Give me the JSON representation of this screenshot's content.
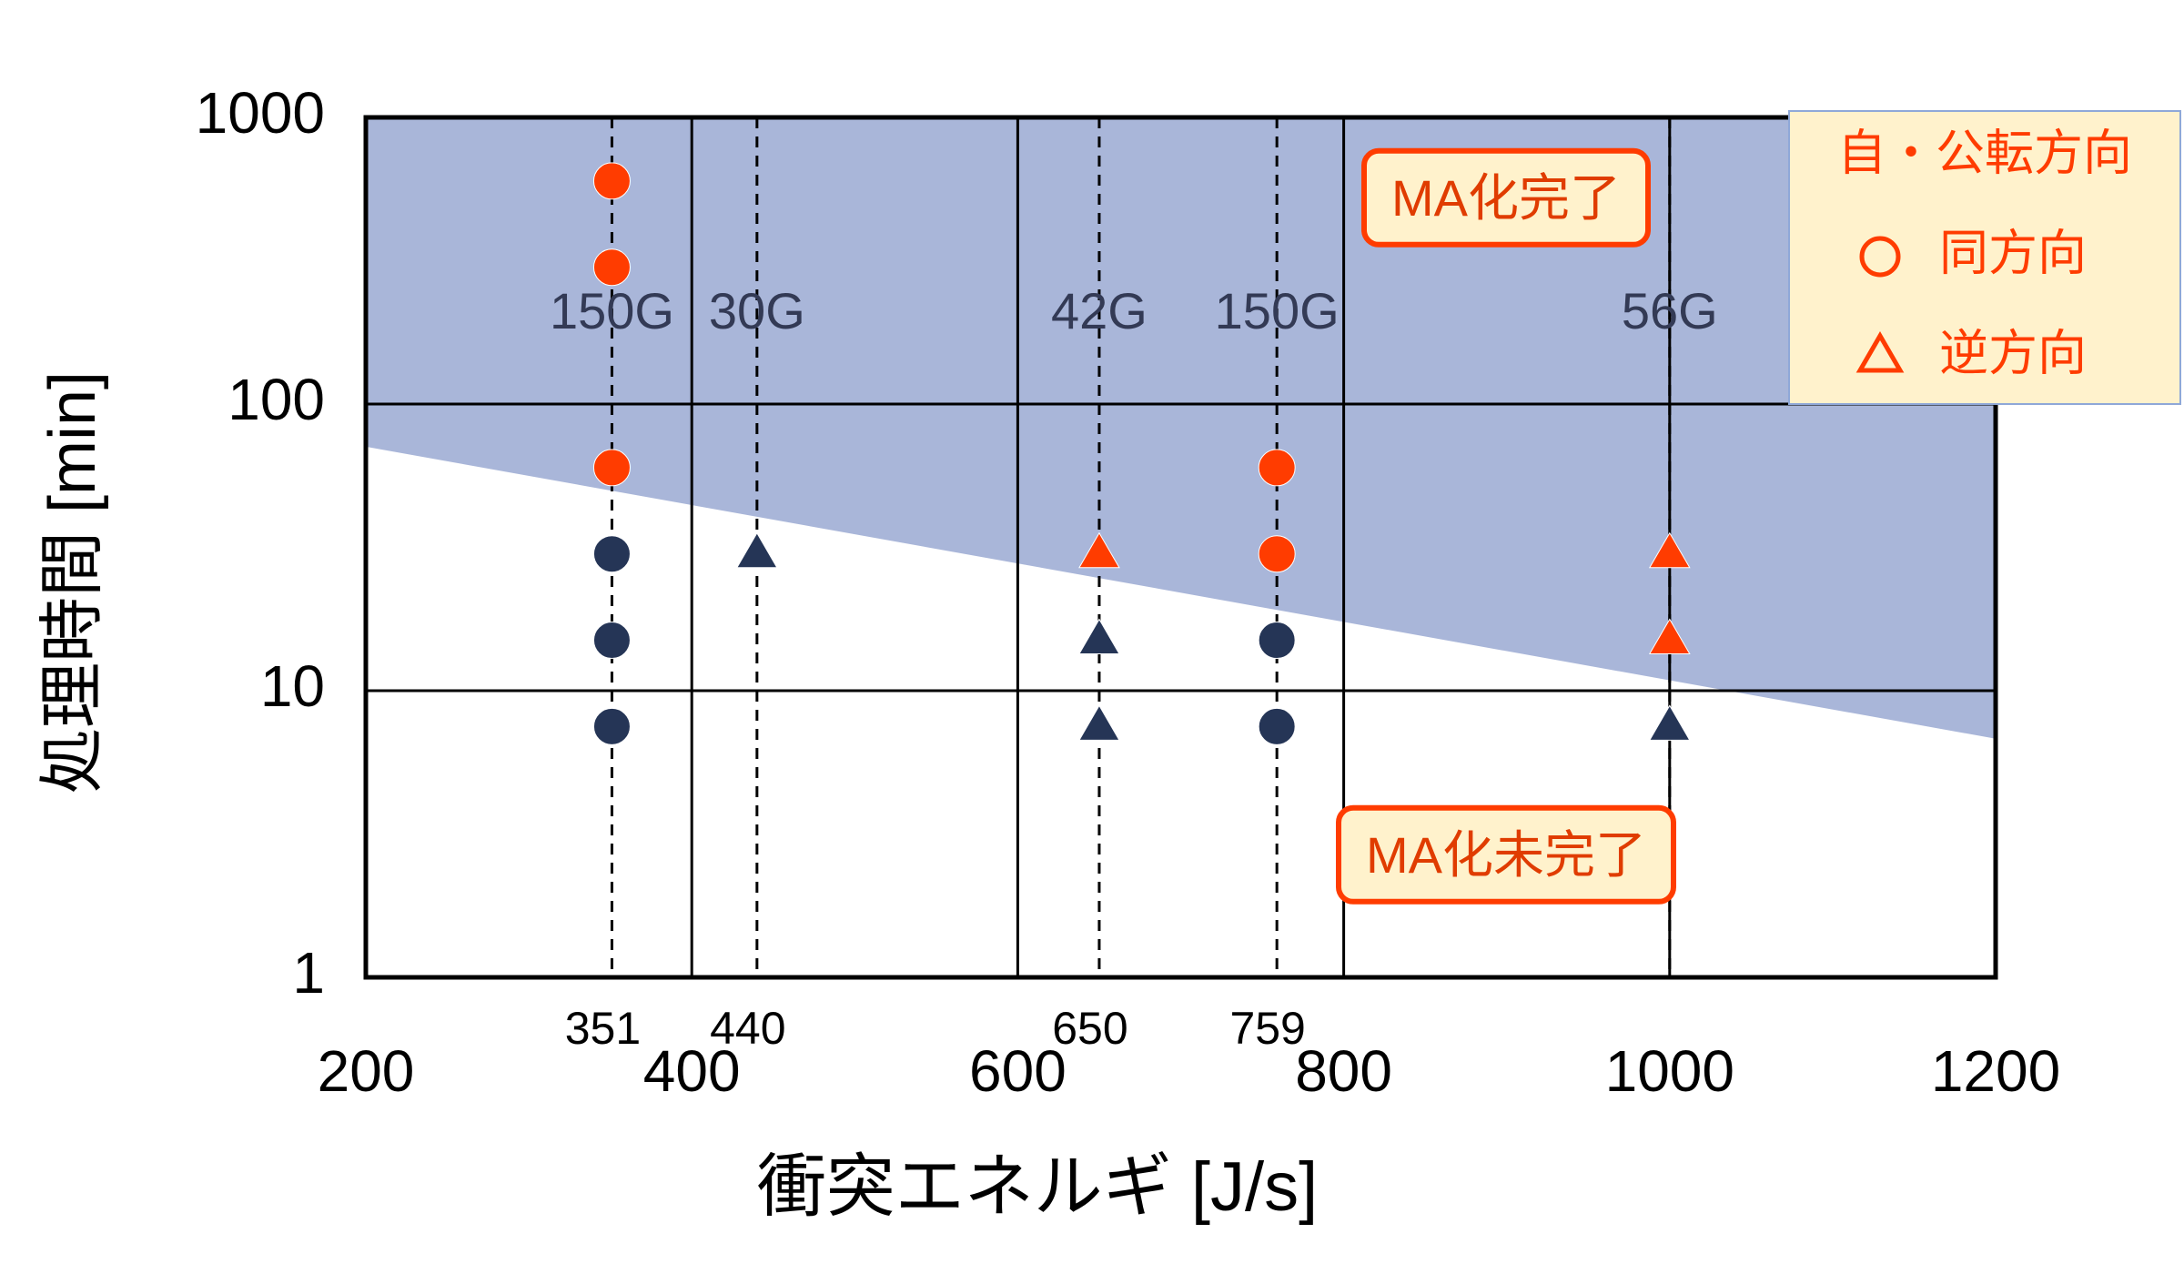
{
  "chart_data": {
    "type": "scatter",
    "xlabel": "衝突エネルギ [J/s]",
    "ylabel": "処理時間 [min]",
    "xlim": [
      200,
      1200
    ],
    "xticks": [
      200,
      400,
      600,
      800,
      1000,
      1200
    ],
    "ylim": [
      1,
      1000
    ],
    "yticks": [
      1,
      10,
      100,
      1000
    ],
    "log_y": true,
    "grid": true,
    "region": {
      "color": "#a9b6d9",
      "x": [
        200,
        1200
      ],
      "y": [
        71,
        6.8
      ]
    },
    "markers": [
      {
        "x": 351,
        "label": "150G"
      },
      {
        "x": 440,
        "label": "30G"
      },
      {
        "x": 650,
        "label": "42G"
      },
      {
        "x": 759,
        "label": "150G"
      },
      {
        "x": 1000,
        "label": "56G"
      }
    ],
    "legend_title": "自・公転方向",
    "legend_position": "upper right",
    "series": [
      {
        "name": "同方向",
        "marker": "circle",
        "x": [
          351,
          351,
          351,
          351,
          351,
          351,
          759,
          759,
          759,
          759
        ],
        "values": [
          600,
          300,
          60,
          30,
          15,
          7.5,
          60,
          30,
          15,
          7.5
        ],
        "colors": [
          "#ff3c00",
          "#ff3c00",
          "#ff3c00",
          "#253556",
          "#253556",
          "#253556",
          "#ff3c00",
          "#ff3c00",
          "#253556",
          "#253556"
        ]
      },
      {
        "name": "逆方向",
        "marker": "triangle",
        "x": [
          440,
          650,
          650,
          650,
          1000,
          1000,
          1000
        ],
        "values": [
          30,
          30,
          15,
          7.5,
          30,
          15,
          7.5
        ],
        "colors": [
          "#253556",
          "#ff3c00",
          "#253556",
          "#253556",
          "#ff3c00",
          "#ff3c00",
          "#253556"
        ]
      }
    ],
    "annotations": [
      "MA化完了",
      "MA化未完了"
    ]
  }
}
